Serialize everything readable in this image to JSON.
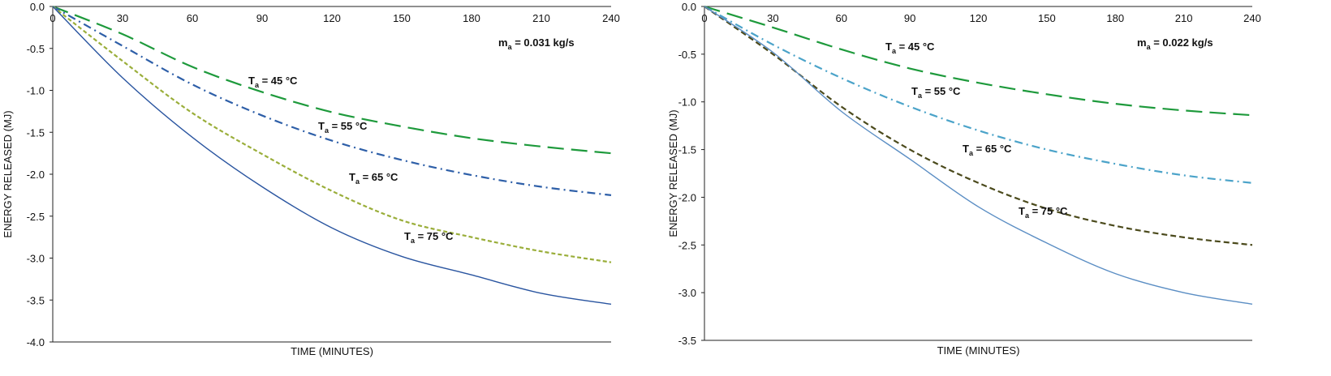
{
  "chart_data": [
    {
      "type": "line",
      "title": "",
      "xlabel": "TIME (MINUTES)",
      "ylabel": "ENERGY RELEASED (MJ)",
      "xlim": [
        0,
        240
      ],
      "ylim": [
        -4.0,
        0.0
      ],
      "xticks": [
        "0",
        "30",
        "60",
        "90",
        "120",
        "150",
        "180",
        "210",
        "240"
      ],
      "yticks": [
        "0.0",
        "-0.5",
        "-1.0",
        "-1.5",
        "-2.0",
        "-2.5",
        "-3.0",
        "-3.5",
        "-4.0"
      ],
      "grid": false,
      "annotation": "m_a = 0.031 kg/s",
      "series": [
        {
          "name": "T_a = 45 °C",
          "label_main": "T",
          "label_sub": "a",
          "label_rest": " = 45 °C",
          "color": "#1e9a3c",
          "dash": "20 9",
          "x": [
            0,
            30,
            60,
            90,
            120,
            150,
            180,
            210,
            240
          ],
          "y": [
            0.0,
            -0.33,
            -0.72,
            -1.02,
            -1.26,
            -1.43,
            -1.57,
            -1.67,
            -1.75
          ]
        },
        {
          "name": "T_a = 55 °C",
          "label_main": "T",
          "label_sub": "a",
          "label_rest": " = 55 °C",
          "color": "#2e5fa8",
          "dash": "10 5 2 5",
          "x": [
            0,
            30,
            60,
            90,
            120,
            150,
            180,
            210,
            240
          ],
          "y": [
            0.0,
            -0.47,
            -0.93,
            -1.3,
            -1.6,
            -1.83,
            -2.01,
            -2.15,
            -2.25
          ]
        },
        {
          "name": "T_a = 65 °C",
          "label_main": "T",
          "label_sub": "a",
          "label_rest": " = 65 °C",
          "color": "#9aae3a",
          "dash": "5 3",
          "x": [
            0,
            30,
            60,
            90,
            120,
            150,
            180,
            210,
            240
          ],
          "y": [
            0.0,
            -0.65,
            -1.27,
            -1.76,
            -2.2,
            -2.55,
            -2.75,
            -2.92,
            -3.05
          ]
        },
        {
          "name": "T_a = 75 °C",
          "label_main": "T",
          "label_sub": "a",
          "label_rest": " = 75 °C",
          "color": "#2a55a0",
          "dash": "",
          "x": [
            0,
            30,
            60,
            90,
            120,
            150,
            180,
            210,
            240
          ],
          "y": [
            0.0,
            -0.85,
            -1.56,
            -2.15,
            -2.64,
            -2.98,
            -3.2,
            -3.42,
            -3.55
          ]
        }
      ]
    },
    {
      "type": "line",
      "title": "",
      "xlabel": "TIME (MINUTES)",
      "ylabel": "ENERGY RELEASED (MJ)",
      "xlim": [
        0,
        240
      ],
      "ylim": [
        -3.5,
        0.0
      ],
      "xticks": [
        "0",
        "30",
        "60",
        "90",
        "120",
        "150",
        "180",
        "210",
        "240"
      ],
      "yticks": [
        "0.0",
        "-0.5",
        "-1.0",
        "-1.5",
        "-2.0",
        "-2.5",
        "-3.0",
        "-3.5"
      ],
      "grid": false,
      "annotation": "m_a = 0.022 kg/s",
      "series": [
        {
          "name": "T_a = 45 °C",
          "label_main": "T",
          "label_sub": "a",
          "label_rest": " = 45 °C",
          "color": "#1e9a3c",
          "dash": "20 9",
          "x": [
            0,
            30,
            60,
            90,
            120,
            150,
            180,
            210,
            240
          ],
          "y": [
            0.0,
            -0.22,
            -0.45,
            -0.65,
            -0.8,
            -0.92,
            -1.02,
            -1.09,
            -1.14
          ]
        },
        {
          "name": "T_a = 55 °C",
          "label_main": "T",
          "label_sub": "a",
          "label_rest": " = 55 °C",
          "color": "#4ba3c9",
          "dash": "10 5 2 5",
          "x": [
            0,
            30,
            60,
            90,
            120,
            150,
            180,
            210,
            240
          ],
          "y": [
            0.0,
            -0.4,
            -0.75,
            -1.05,
            -1.3,
            -1.5,
            -1.65,
            -1.77,
            -1.85
          ]
        },
        {
          "name": "T_a = 65 °C",
          "label_main": "T",
          "label_sub": "a",
          "label_rest": " = 65 °C",
          "color": "#4b4a1c",
          "dash": "7 4",
          "x": [
            0,
            30,
            60,
            90,
            120,
            150,
            180,
            210,
            240
          ],
          "y": [
            0.0,
            -0.5,
            -1.05,
            -1.5,
            -1.85,
            -2.12,
            -2.3,
            -2.42,
            -2.5
          ]
        },
        {
          "name": "T_a = 75 °C",
          "label_main": "T",
          "label_sub": "a",
          "label_rest": " = 75 °C",
          "color": "#5b8ec4",
          "dash": "",
          "x": [
            0,
            30,
            60,
            90,
            120,
            150,
            180,
            210,
            240
          ],
          "y": [
            0.0,
            -0.48,
            -1.1,
            -1.6,
            -2.1,
            -2.48,
            -2.8,
            -3.0,
            -3.12
          ]
        }
      ]
    }
  ]
}
